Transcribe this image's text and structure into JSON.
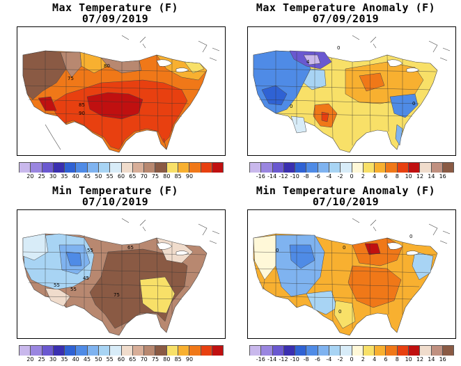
{
  "panels": [
    {
      "title": "Max Temperature (F)",
      "date": "07/09/2019",
      "scale": "temp",
      "contour_labels": [
        "75",
        "80",
        "85",
        "90"
      ]
    },
    {
      "title": "Max Temperature Anomaly (F)",
      "date": "07/09/2019",
      "scale": "anom",
      "contour_labels": [
        "0",
        "4",
        "0",
        "0"
      ]
    },
    {
      "title": "Min Temperature (F)",
      "date": "07/10/2019",
      "scale": "temp",
      "contour_labels": [
        "55",
        "45",
        "55",
        "75",
        "65",
        "55"
      ]
    },
    {
      "title": "Min Temperature Anomaly (F)",
      "date": "07/10/2019",
      "scale": "anom",
      "contour_labels": [
        "0",
        "0",
        "0",
        "0"
      ]
    }
  ],
  "scales": {
    "temp": {
      "ticks": [
        "20",
        "25",
        "30",
        "35",
        "40",
        "45",
        "50",
        "55",
        "60",
        "65",
        "70",
        "75",
        "80",
        "85",
        "90"
      ],
      "colors": [
        "#c9b8ec",
        "#9a86e0",
        "#6a58d0",
        "#3a2fb0",
        "#2f62d4",
        "#4f8be6",
        "#7fb3f0",
        "#a8d4f4",
        "#d8ecf8",
        "#f0dccc",
        "#d8ae98",
        "#b88870",
        "#8a5a44",
        "#f8e068",
        "#f8b030",
        "#f07818",
        "#e84010",
        "#c01010"
      ]
    },
    "anom": {
      "ticks": [
        "-16",
        "-14",
        "-12",
        "-10",
        "-8",
        "-6",
        "-4",
        "-2",
        "0",
        "2",
        "4",
        "6",
        "8",
        "10",
        "12",
        "14",
        "16"
      ],
      "colors": [
        "#c9b8ec",
        "#9a86e0",
        "#6a58d0",
        "#3a2fb0",
        "#2f62d4",
        "#4f8be6",
        "#7fb3f0",
        "#a8d4f4",
        "#d8ecf8",
        "#fff8d8",
        "#f8e068",
        "#f8b030",
        "#f07818",
        "#e84010",
        "#c01010",
        "#f0dccc",
        "#c09080",
        "#8a5a44"
      ]
    }
  }
}
